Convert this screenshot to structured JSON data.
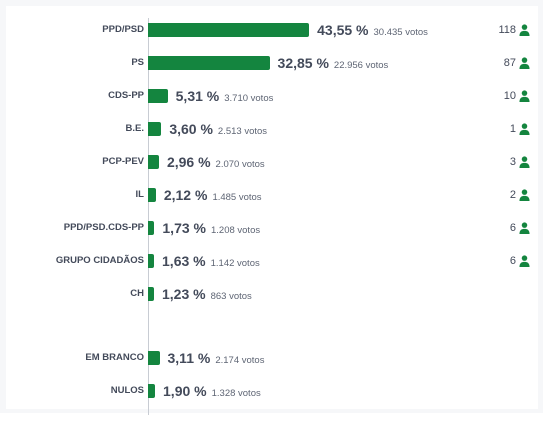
{
  "chart_data": {
    "type": "bar",
    "orientation": "horizontal",
    "bar_color": "#14853f",
    "rows": [
      {
        "label": "PPD/PSD",
        "value": 43.55,
        "pct_text": "43,55 %",
        "votes_text": "30.435 votos",
        "seats": "118"
      },
      {
        "label": "PS",
        "value": 32.85,
        "pct_text": "32,85 %",
        "votes_text": "22.956 votos",
        "seats": "87"
      },
      {
        "label": "CDS-PP",
        "value": 5.31,
        "pct_text": "5,31 %",
        "votes_text": "3.710 votos",
        "seats": "10"
      },
      {
        "label": "B.E.",
        "value": 3.6,
        "pct_text": "3,60 %",
        "votes_text": "2.513 votos",
        "seats": "1"
      },
      {
        "label": "PCP-PEV",
        "value": 2.96,
        "pct_text": "2,96 %",
        "votes_text": "2.070 votos",
        "seats": "3"
      },
      {
        "label": "IL",
        "value": 2.12,
        "pct_text": "2,12 %",
        "votes_text": "1.485 votos",
        "seats": "2"
      },
      {
        "label": "PPD/PSD.CDS-PP",
        "value": 1.73,
        "pct_text": "1,73 %",
        "votes_text": "1.208 votos",
        "seats": "6"
      },
      {
        "label": "GRUPO CIDADÃOS",
        "value": 1.63,
        "pct_text": "1,63 %",
        "votes_text": "1.142 votos",
        "seats": "6"
      },
      {
        "label": "CH",
        "value": 1.23,
        "pct_text": "1,23 %",
        "votes_text": "863 votos",
        "seats": null
      },
      {
        "label": "EM BRANCO",
        "value": 3.11,
        "pct_text": "3,11 %",
        "votes_text": "2.174 votos",
        "seats": null
      },
      {
        "label": "NULOS",
        "value": 1.9,
        "pct_text": "1,90 %",
        "votes_text": "1.328 votos",
        "seats": null
      }
    ],
    "seats_icon": "person-icon"
  }
}
